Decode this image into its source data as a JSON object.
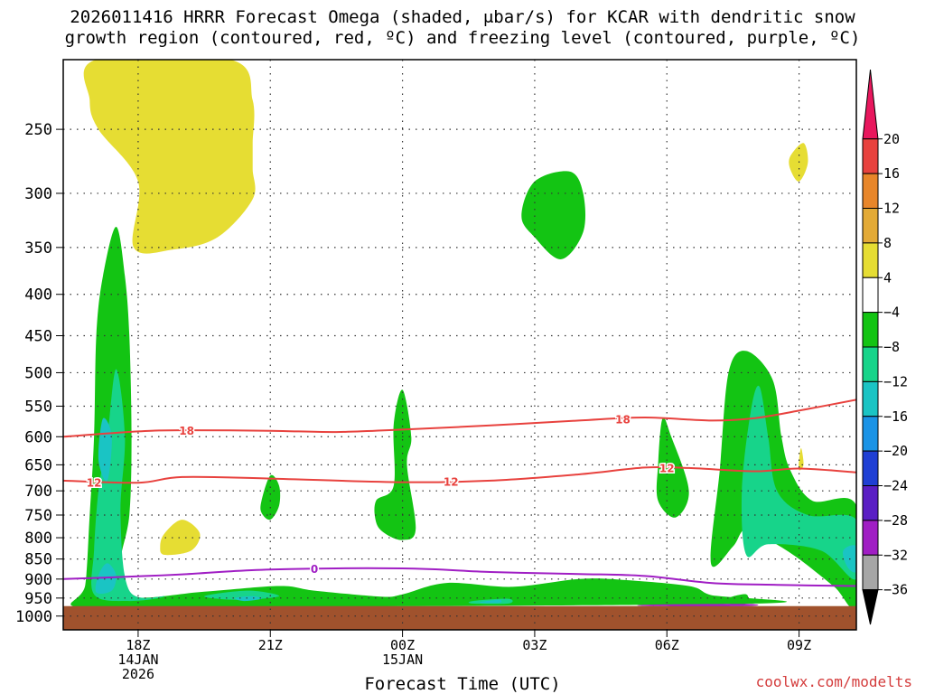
{
  "title_line1": "2026011416 HRRR Forecast Omega (shaded, μbar/s) for KCAR with dendritic snow",
  "title_line2": "growth region (contoured, red, ºC) and freezing level (contoured, purple, ºC)",
  "xaxis_title": "Forecast Time (UTC)",
  "credit": "coolwx.com/modelts",
  "chart_data": {
    "type": "heatmap",
    "x_range_hours": [
      -1.7,
      16.3
    ],
    "x_ticks": [
      {
        "hour": 0,
        "label": "18Z",
        "sub1": "14JAN",
        "sub2": "2026"
      },
      {
        "hour": 3,
        "label": "21Z",
        "sub1": "",
        "sub2": ""
      },
      {
        "hour": 6,
        "label": "00Z",
        "sub1": "15JAN",
        "sub2": ""
      },
      {
        "hour": 9,
        "label": "03Z",
        "sub1": "",
        "sub2": ""
      },
      {
        "hour": 12,
        "label": "06Z",
        "sub1": "",
        "sub2": ""
      },
      {
        "hour": 15,
        "label": "09Z",
        "sub1": "",
        "sub2": ""
      }
    ],
    "y_range_hpa": [
      1040,
      205
    ],
    "y_ticks": [
      250,
      300,
      350,
      400,
      450,
      500,
      550,
      600,
      650,
      700,
      750,
      800,
      850,
      900,
      950,
      1000
    ],
    "ground_hpa": 972,
    "colorbar": {
      "labels": [
        "20",
        "16",
        "12",
        "8",
        "4",
        "−4",
        "−8",
        "−12",
        "−16",
        "−20",
        "−24",
        "−28",
        "−32",
        "−36"
      ],
      "colors": [
        "#e8175d",
        "#e8423e",
        "#e8862a",
        "#e3aa36",
        "#e6dd33",
        "#ffffff",
        "#13c413",
        "#17d48a",
        "#1ac4c4",
        "#1a93e6",
        "#1f3fd4",
        "#5a1ec4",
        "#a01ec4",
        "#a6a6a6",
        "#000000"
      ]
    },
    "contours": [
      {
        "label": "-18",
        "color": "#e8423e",
        "points": [
          [
            -1.7,
            600
          ],
          [
            0,
            591
          ],
          [
            1,
            589
          ],
          [
            3,
            590
          ],
          [
            4.5,
            592
          ],
          [
            6,
            588
          ],
          [
            8,
            581
          ],
          [
            10,
            573
          ],
          [
            11.5,
            568
          ],
          [
            13,
            573
          ],
          [
            14,
            569
          ],
          [
            15,
            557
          ],
          [
            16.3,
            540
          ]
        ]
      },
      {
        "label": "-12",
        "color": "#e8423e",
        "points": [
          [
            -1.7,
            680
          ],
          [
            0,
            684
          ],
          [
            1,
            673
          ],
          [
            3,
            676
          ],
          [
            6,
            683
          ],
          [
            8,
            680
          ],
          [
            10,
            668
          ],
          [
            11.5,
            655
          ],
          [
            12.5,
            656
          ],
          [
            14,
            662
          ],
          [
            15,
            657
          ],
          [
            16.3,
            664
          ]
        ]
      },
      {
        "label": "0",
        "color": "#a01ec4",
        "points": [
          [
            -1.7,
            900
          ],
          [
            0,
            893
          ],
          [
            1,
            888
          ],
          [
            3,
            876
          ],
          [
            6,
            873
          ],
          [
            8,
            882
          ],
          [
            10,
            887
          ],
          [
            11.5,
            892
          ],
          [
            13,
            910
          ],
          [
            14.5,
            915
          ],
          [
            16.3,
            918
          ]
        ]
      }
    ],
    "contour_labels": [
      {
        "text": "18",
        "hour": 1.1,
        "hpa": 589,
        "color": "#e8423e"
      },
      {
        "text": "18",
        "hour": 11.0,
        "hpa": 570,
        "color": "#e8423e"
      },
      {
        "text": "12",
        "hour": -1.0,
        "hpa": 683,
        "color": "#e8423e"
      },
      {
        "text": "12",
        "hour": 7.1,
        "hpa": 681,
        "color": "#e8423e"
      },
      {
        "text": "12",
        "hour": 12.0,
        "hpa": 655,
        "color": "#e8423e"
      },
      {
        "text": "0",
        "hour": 4.0,
        "hpa": 873,
        "color": "#a01ec4"
      }
    ],
    "omega_regions": [
      {
        "value": -6,
        "color": "#13c413",
        "points": [
          [
            -1.4,
            975
          ],
          [
            -1.2,
            915
          ],
          [
            -1.1,
            750
          ],
          [
            -1,
            600
          ],
          [
            -0.95,
            450
          ],
          [
            -0.8,
            380
          ],
          [
            -0.5,
            330
          ],
          [
            -0.3,
            380
          ],
          [
            -0.2,
            450
          ],
          [
            -0.15,
            600
          ],
          [
            -0.2,
            750
          ],
          [
            -0.4,
            860
          ],
          [
            -0.2,
            945
          ],
          [
            1.5,
            933
          ],
          [
            3.2,
            918
          ],
          [
            4,
            930
          ],
          [
            5.5,
            946
          ],
          [
            6,
            940
          ],
          [
            7,
            910
          ],
          [
            8.5,
            920
          ],
          [
            10,
            900
          ],
          [
            11,
            902
          ],
          [
            12.5,
            918
          ],
          [
            13,
            942
          ],
          [
            14,
            965
          ],
          [
            1,
            975
          ]
        ]
      },
      {
        "value": -6,
        "color": "#13c413",
        "points": [
          [
            2.8,
            720
          ],
          [
            3.0,
            670
          ],
          [
            3.2,
            690
          ],
          [
            3.2,
            730
          ],
          [
            3.0,
            760
          ],
          [
            2.8,
            745
          ]
        ]
      },
      {
        "value": -6,
        "color": "#13c413",
        "points": [
          [
            5.4,
            765
          ],
          [
            5.4,
            720
          ],
          [
            5.8,
            690
          ],
          [
            5.8,
            580
          ],
          [
            6.0,
            525
          ],
          [
            6.2,
            600
          ],
          [
            6.1,
            650
          ],
          [
            6.3,
            780
          ],
          [
            6.0,
            805
          ],
          [
            5.6,
            790
          ]
        ]
      },
      {
        "value": -6,
        "color": "#13c413",
        "points": [
          [
            8.7,
            320
          ],
          [
            9.0,
            290
          ],
          [
            9.8,
            282
          ],
          [
            10.1,
            300
          ],
          [
            10.1,
            335
          ],
          [
            9.6,
            362
          ],
          [
            9.0,
            340
          ]
        ]
      },
      {
        "value": -6,
        "color": "#13c413",
        "points": [
          [
            11.8,
            650
          ],
          [
            11.9,
            570
          ],
          [
            12.1,
            600
          ],
          [
            12.5,
            700
          ],
          [
            12.2,
            755
          ],
          [
            11.8,
            720
          ]
        ]
      },
      {
        "value": -6,
        "color": "#13c413",
        "points": [
          [
            13.0,
            860
          ],
          [
            13.2,
            660
          ],
          [
            13.4,
            500
          ],
          [
            13.8,
            470
          ],
          [
            14.4,
            510
          ],
          [
            14.6,
            600
          ],
          [
            14.8,
            660
          ],
          [
            15.3,
            720
          ],
          [
            16.3,
            730
          ],
          [
            16.3,
            970
          ],
          [
            15.8,
            920
          ],
          [
            15.0,
            850
          ],
          [
            14.4,
            810
          ],
          [
            13.8,
            780
          ],
          [
            13.5,
            820
          ]
        ]
      },
      {
        "value": -6,
        "color": "#13c413",
        "points": [
          [
            13.4,
            950
          ],
          [
            13.8,
            940
          ],
          [
            13.8,
            965
          ],
          [
            13.4,
            965
          ]
        ]
      },
      {
        "value": -10,
        "color": "#17d48a",
        "points": [
          [
            -1.0,
            940
          ],
          [
            -1.0,
            830
          ],
          [
            -0.9,
            700
          ],
          [
            -0.7,
            600
          ],
          [
            -0.5,
            495
          ],
          [
            -0.3,
            600
          ],
          [
            -0.4,
            750
          ],
          [
            -0.2,
            930
          ],
          [
            0.6,
            945
          ],
          [
            -0.2,
            958
          ]
        ]
      },
      {
        "value": -10,
        "color": "#17d48a",
        "points": [
          [
            1.5,
            945
          ],
          [
            2.5,
            930
          ],
          [
            3.2,
            945
          ],
          [
            2.3,
            955
          ]
        ]
      },
      {
        "value": -10,
        "color": "#17d48a",
        "points": [
          [
            7.6,
            958
          ],
          [
            8.4,
            952
          ],
          [
            8.4,
            965
          ],
          [
            7.6,
            965
          ]
        ]
      },
      {
        "value": -10,
        "color": "#17d48a",
        "points": [
          [
            13.8,
            840
          ],
          [
            13.7,
            700
          ],
          [
            13.9,
            560
          ],
          [
            14.1,
            520
          ],
          [
            14.3,
            600
          ],
          [
            14.5,
            700
          ],
          [
            15.2,
            750
          ],
          [
            16.3,
            760
          ],
          [
            16.3,
            900
          ],
          [
            15.5,
            830
          ],
          [
            14.3,
            815
          ]
        ]
      },
      {
        "value": -14,
        "color": "#1ac4c4",
        "points": [
          [
            -0.95,
            935
          ],
          [
            -0.9,
            890
          ],
          [
            -0.7,
            860
          ],
          [
            -0.5,
            890
          ],
          [
            -0.6,
            930
          ]
        ]
      },
      {
        "value": -14,
        "color": "#1ac4c4",
        "points": [
          [
            -0.9,
            640
          ],
          [
            -0.8,
            570
          ],
          [
            -0.6,
            600
          ],
          [
            -0.7,
            680
          ]
        ]
      },
      {
        "value": -14,
        "color": "#1ac4c4",
        "points": [
          [
            2.2,
            950
          ],
          [
            2.6,
            945
          ],
          [
            2.8,
            952
          ],
          [
            2.4,
            958
          ]
        ]
      },
      {
        "value": -14,
        "color": "#1ac4c4",
        "points": [
          [
            7.8,
            960
          ],
          [
            8.2,
            955
          ],
          [
            8.2,
            963
          ],
          [
            7.8,
            963
          ]
        ]
      },
      {
        "value": -14,
        "color": "#1ac4c4",
        "points": [
          [
            16.0,
            830
          ],
          [
            16.3,
            820
          ],
          [
            16.3,
            880
          ],
          [
            16.1,
            870
          ]
        ]
      },
      {
        "value": -30,
        "color": "#a01ec4",
        "points": [
          [
            11.6,
            968
          ],
          [
            13.8,
            966
          ],
          [
            13.8,
            972
          ],
          [
            11.6,
            972
          ]
        ]
      },
      {
        "value": 6,
        "color": "#e6dd33",
        "points": [
          [
            -0.95,
            205
          ],
          [
            -1.1,
            230
          ],
          [
            -0.9,
            250
          ],
          [
            0,
            290
          ],
          [
            -0.1,
            350
          ],
          [
            0.8,
            352
          ],
          [
            1.8,
            340
          ],
          [
            2.6,
            305
          ],
          [
            2.6,
            280
          ],
          [
            2.6,
            260
          ],
          [
            2.6,
            230
          ],
          [
            2.1,
            205
          ]
        ]
      },
      {
        "value": 6,
        "color": "#e6dd33",
        "points": [
          [
            0.5,
            820
          ],
          [
            0.6,
            790
          ],
          [
            1.0,
            760
          ],
          [
            1.4,
            790
          ],
          [
            1.2,
            830
          ],
          [
            0.6,
            840
          ]
        ]
      },
      {
        "value": 6,
        "color": "#e6dd33",
        "points": [
          [
            14.8,
            270
          ],
          [
            15.1,
            260
          ],
          [
            15.2,
            275
          ],
          [
            15.0,
            290
          ],
          [
            14.8,
            280
          ]
        ]
      },
      {
        "value": 6,
        "color": "#e6dd33",
        "points": [
          [
            15.0,
            640
          ],
          [
            15.05,
            620
          ],
          [
            15.1,
            650
          ],
          [
            15.0,
            660
          ]
        ]
      }
    ]
  }
}
